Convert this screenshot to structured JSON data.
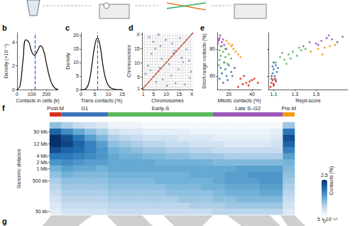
{
  "chart_data": [
    {
      "panel": "b",
      "type": "line",
      "x": [
        0,
        20,
        40,
        60,
        80,
        100,
        120,
        140,
        160,
        180,
        200,
        220,
        240,
        260,
        280
      ],
      "values": [
        0,
        0.3,
        2.4,
        4.2,
        4.0,
        3.2,
        2.9,
        3.3,
        3.7,
        3.3,
        2.2,
        1.1,
        0.4,
        0.1,
        0
      ],
      "color": "#000000",
      "median": 120,
      "xlim": [
        0,
        280
      ],
      "ylim": [
        0,
        4.8
      ],
      "xticks": [
        0,
        100,
        200
      ],
      "yticks": [
        0,
        2,
        4
      ],
      "x_label": "Contacts in cells (k)",
      "y_label": "Density (×10⁻⁶)"
    },
    {
      "panel": "c",
      "type": "line",
      "x": [
        0,
        1,
        2,
        3,
        4,
        5,
        6,
        7,
        8,
        9,
        10,
        11,
        12,
        13,
        14,
        15
      ],
      "values": [
        0,
        0,
        0.5,
        3,
        9,
        16,
        19,
        16,
        9,
        4,
        1.5,
        0.5,
        0.2,
        0,
        0,
        0
      ],
      "color": "#000000",
      "median": 6,
      "xlim": [
        0,
        15
      ],
      "ylim": [
        0,
        21
      ],
      "xticks": [
        0,
        5,
        10,
        15
      ],
      "yticks": [
        0,
        5,
        10,
        15,
        20
      ],
      "x_label": "Trans contacts (%)",
      "y_label": "Density"
    },
    {
      "panel": "d",
      "type": "scatter",
      "x": [
        2.3,
        5.6,
        7.2,
        11.4,
        3.8,
        14.2,
        16.7,
        9.3,
        18.4,
        6.5,
        12.8,
        1.4,
        8.1,
        15.5,
        4.4,
        10.6,
        17.3,
        13.1,
        2.9,
        19.2,
        7.7,
        11.9,
        5.2,
        16.1,
        9.8,
        14.9,
        3.3,
        18.8,
        12.2,
        6.9
      ],
      "y": [
        8.4,
        2.7,
        15.3,
        4.9,
        12.6,
        7.1,
        1.8,
        17.5,
        10.2,
        19.3,
        13.7,
        5.5,
        3.6,
        11.2,
        16.8,
        8.9,
        14.1,
        2.2,
        18.4,
        6.3,
        10.8,
        16.2,
        14.4,
        9.7,
        1.3,
        18.1,
        6.8,
        4.1,
        12.9,
        7.6
      ],
      "color": "#5b7fc0",
      "boundaries": [
        1,
        2,
        3,
        4,
        5,
        6,
        7,
        8,
        9,
        10,
        11,
        12,
        13,
        14,
        15,
        16,
        17,
        18,
        19
      ],
      "xlim": [
        0,
        20
      ],
      "ylim": [
        0,
        20
      ],
      "xticks": [
        {
          "value": 0.5,
          "label": "1"
        },
        {
          "value": 4.5,
          "label": "5"
        },
        {
          "value": 9.5,
          "label": "10"
        },
        {
          "value": 14.5,
          "label": "15"
        },
        {
          "value": 19.5,
          "label": "X"
        }
      ],
      "yticks": [
        {
          "value": 0.5,
          "label": "1"
        },
        {
          "value": 4.5,
          "label": "5"
        },
        {
          "value": 9.5,
          "label": "10"
        },
        {
          "value": 14.5,
          "label": "15"
        },
        {
          "value": 19.5,
          "label": "X"
        }
      ],
      "x_label": "Chromosomes",
      "y_label": "Chromosomes"
    },
    {
      "panel": "e",
      "type": "scatter",
      "series": [
        {
          "color": "#d7301f",
          "x": [
            28,
            32,
            35,
            38,
            40,
            42,
            45,
            33,
            37,
            30
          ],
          "y": [
            52,
            54,
            55,
            56,
            57,
            58,
            55,
            60,
            53,
            58
          ]
        },
        {
          "color": "#3b75b8",
          "x": [
            12,
            14,
            15,
            17,
            18,
            20,
            22,
            25,
            16,
            19,
            13,
            23
          ],
          "y": [
            58,
            62,
            55,
            65,
            60,
            68,
            63,
            66,
            70,
            57,
            66,
            60
          ]
        },
        {
          "color": "#5cb85c",
          "x": [
            11.5,
            12,
            13,
            15,
            16,
            18,
            20,
            14,
            17,
            22,
            12,
            19
          ],
          "y": [
            68,
            72,
            75,
            78,
            70,
            80,
            76,
            82,
            74,
            73,
            79,
            69
          ]
        },
        {
          "color": "#9b59b6",
          "x": [
            10.5,
            11,
            12,
            13,
            14,
            15,
            16,
            17,
            11.5,
            12.5
          ],
          "y": [
            84,
            86,
            88,
            82,
            85,
            87,
            83,
            80,
            87,
            90
          ]
        },
        {
          "color": "#f39c12",
          "x": [
            18,
            20,
            22,
            24,
            26,
            28,
            30,
            23
          ],
          "y": [
            86,
            84,
            82,
            80,
            78,
            76,
            74,
            83
          ]
        }
      ],
      "xlim": [
        10,
        48
      ],
      "ylim": [
        50,
        92
      ],
      "xticks": [
        20,
        40
      ],
      "yticks": [
        60,
        80
      ],
      "x_label": "Mitotic contacts (%)",
      "y_label": "Short-range contacts (%)"
    },
    {
      "type": "scatter",
      "series": [
        {
          "color": "#d7301f",
          "x": [
            1.07,
            1.08,
            1.09,
            1.1,
            1.11,
            1.12,
            1.08,
            1.1
          ],
          "y": [
            52,
            55,
            57,
            54,
            58,
            56,
            60,
            53
          ]
        },
        {
          "color": "#3b75b8",
          "x": [
            1.08,
            1.09,
            1.1,
            1.11,
            1.12,
            1.13,
            1.14,
            1.1,
            1.12,
            1.09
          ],
          "y": [
            58,
            62,
            65,
            60,
            68,
            63,
            66,
            70,
            57,
            67
          ]
        },
        {
          "color": "#5cb85c",
          "x": [
            1.12,
            1.16,
            1.2,
            1.24,
            1.28,
            1.32,
            1.36,
            1.4,
            1.18,
            1.26,
            1.34,
            1.22
          ],
          "y": [
            70,
            74,
            72,
            76,
            78,
            75,
            79,
            80,
            77,
            73,
            81,
            69
          ]
        },
        {
          "color": "#9b59b6",
          "x": [
            1.38,
            1.44,
            1.5,
            1.55,
            1.6,
            1.65,
            1.7,
            1.75,
            1.52,
            1.62
          ],
          "y": [
            82,
            85,
            84,
            86,
            88,
            87,
            85,
            89,
            83,
            90
          ]
        },
        {
          "color": "#f39c12",
          "x": [
            1.45,
            1.52,
            1.58,
            1.63,
            1.68,
            1.56
          ],
          "y": [
            78,
            80,
            81,
            82,
            83,
            76
          ]
        }
      ],
      "xlim": [
        1.05,
        1.8
      ],
      "ylim": [
        50,
        92
      ],
      "xticks": [
        1.1,
        1.3,
        1.5
      ],
      "yticks": [
        60,
        80
      ],
      "x_label": "Repli-score",
      "tick_labels": "x"
    },
    {
      "panel": "f",
      "type": "heatmap",
      "categories": [
        null,
        null,
        null,
        null,
        null,
        null,
        null,
        null,
        null,
        null,
        null,
        null,
        null,
        null,
        null,
        null,
        null,
        null,
        null,
        null,
        null
      ],
      "rows": [
        "50 kb",
        null,
        null,
        null,
        null,
        "500 kb",
        null,
        "1 Mb",
        "2 Mb",
        "4 Mb",
        null,
        "12 Mb",
        null,
        "50 Mb",
        null
      ],
      "cells": [
        [
          0.3,
          0.5,
          0.5,
          0.5,
          0.5,
          0.6,
          0.6,
          0.6,
          0.6,
          0.6,
          0.6,
          0.6,
          0.6,
          0.6,
          0.7,
          0.7,
          0.7,
          0.7,
          0.7,
          0.7,
          0.4
        ],
        [
          0.4,
          0.6,
          0.6,
          0.6,
          0.6,
          0.7,
          0.7,
          0.7,
          0.7,
          0.7,
          0.7,
          0.7,
          0.8,
          0.8,
          0.8,
          0.9,
          0.9,
          0.9,
          0.9,
          0.9,
          0.5
        ],
        [
          0.5,
          0.7,
          0.7,
          0.7,
          0.7,
          0.8,
          0.8,
          0.8,
          0.8,
          0.8,
          0.8,
          0.9,
          0.9,
          0.9,
          1.0,
          1.0,
          1.1,
          1.1,
          1.1,
          1.1,
          0.6
        ],
        [
          0.6,
          0.8,
          0.8,
          0.8,
          0.8,
          0.9,
          0.9,
          0.9,
          0.9,
          0.9,
          1.0,
          1.0,
          1.0,
          1.0,
          1.1,
          1.2,
          1.2,
          1.2,
          1.3,
          1.3,
          0.7
        ],
        [
          0.7,
          0.9,
          0.9,
          0.9,
          0.9,
          1.0,
          1.0,
          1.0,
          1.0,
          1.0,
          1.1,
          1.1,
          1.1,
          1.2,
          1.2,
          1.3,
          1.3,
          1.3,
          1.4,
          1.4,
          0.8
        ],
        [
          0.8,
          1.0,
          1.0,
          1.0,
          1.0,
          1.1,
          1.1,
          1.1,
          1.1,
          1.2,
          1.2,
          1.2,
          1.2,
          1.2,
          1.3,
          1.4,
          1.4,
          1.4,
          1.5,
          1.5,
          0.9
        ],
        [
          1.0,
          1.2,
          1.1,
          1.1,
          1.1,
          1.2,
          1.2,
          1.2,
          1.2,
          1.2,
          1.2,
          1.2,
          1.3,
          1.3,
          1.3,
          1.4,
          1.4,
          1.5,
          1.5,
          1.5,
          1.0
        ],
        [
          1.2,
          1.4,
          1.3,
          1.3,
          1.2,
          1.3,
          1.3,
          1.3,
          1.3,
          1.3,
          1.3,
          1.3,
          1.3,
          1.3,
          1.3,
          1.3,
          1.4,
          1.4,
          1.4,
          1.4,
          1.1
        ],
        [
          1.5,
          1.6,
          1.5,
          1.4,
          1.4,
          1.3,
          1.3,
          1.3,
          1.3,
          1.2,
          1.2,
          1.2,
          1.2,
          1.2,
          1.1,
          1.1,
          1.1,
          1.1,
          1.1,
          1.1,
          1.2
        ],
        [
          1.8,
          1.8,
          1.7,
          1.6,
          1.5,
          1.3,
          1.2,
          1.2,
          1.1,
          1.1,
          1.0,
          1.0,
          0.9,
          0.9,
          0.9,
          0.8,
          0.8,
          0.8,
          0.8,
          0.8,
          1.4
        ],
        [
          2.2,
          2.0,
          1.9,
          1.7,
          1.5,
          1.2,
          1.1,
          1.0,
          0.9,
          0.9,
          0.8,
          0.8,
          0.7,
          0.7,
          0.6,
          0.6,
          0.6,
          0.6,
          0.6,
          0.6,
          1.7
        ],
        [
          2.5,
          2.3,
          2.0,
          1.7,
          1.4,
          1.0,
          0.9,
          0.8,
          0.7,
          0.7,
          0.6,
          0.6,
          0.5,
          0.5,
          0.5,
          0.4,
          0.4,
          0.4,
          0.4,
          0.5,
          2.0
        ],
        [
          2.5,
          2.2,
          1.8,
          1.4,
          1.1,
          0.8,
          0.7,
          0.6,
          0.5,
          0.5,
          0.5,
          0.4,
          0.4,
          0.4,
          0.3,
          0.3,
          0.3,
          0.3,
          0.3,
          0.4,
          2.2
        ],
        [
          2.0,
          1.6,
          1.3,
          1.0,
          0.8,
          0.5,
          0.4,
          0.4,
          0.3,
          0.3,
          0.3,
          0.3,
          0.2,
          0.2,
          0.2,
          0.2,
          0.2,
          0.2,
          0.2,
          0.3,
          1.8
        ],
        [
          1.0,
          0.8,
          0.6,
          0.5,
          0.4,
          0.2,
          0.2,
          0.2,
          0.1,
          0.1,
          0.1,
          0.1,
          0.1,
          0.1,
          0.1,
          0.1,
          0.1,
          0.1,
          0.1,
          0.1,
          0.9
        ]
      ],
      "y_label": "Genomic distance",
      "colorbar": {
        "range": [
          0,
          2.5
        ],
        "ticks": [
          0,
          2.5
        ],
        "label": "Contacts (%)"
      },
      "phases": [
        {
          "name": "Post-M",
          "color": "#d7301f",
          "start": 0,
          "end": 1
        },
        {
          "name": "G1",
          "color": "#3b75b8",
          "start": 1,
          "end": 5
        },
        {
          "name": "Early-S",
          "color": "#5cb85c",
          "start": 5,
          "end": 14
        },
        {
          "name": "Late S–G2",
          "color": "#9b59b6",
          "start": 14,
          "end": 20
        },
        {
          "name": "Pre-M",
          "color": "#f39c12",
          "start": 20,
          "end": 21
        }
      ],
      "tick_labels": "y"
    },
    {
      "panel": "g",
      "type": "diagram",
      "annotations": [
        "5 × 10⁻¹⁶"
      ]
    }
  ]
}
